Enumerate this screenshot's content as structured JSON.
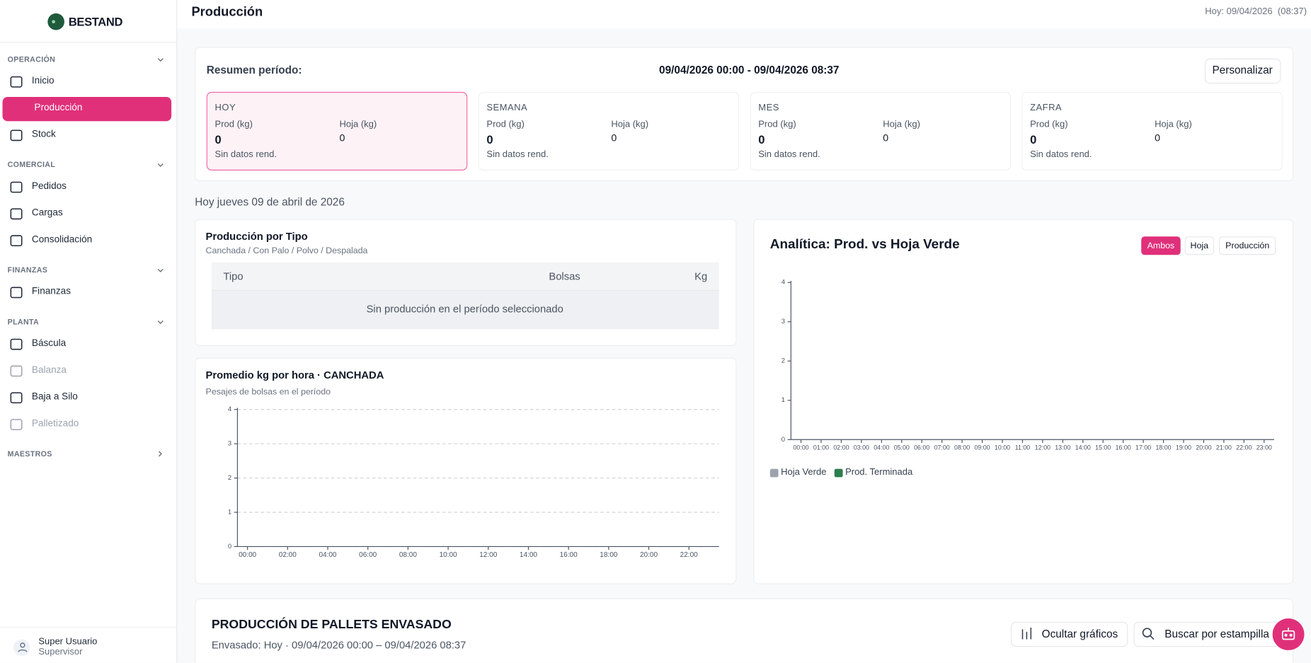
{
  "sidebar": {
    "brand": "BESTAND",
    "sections": [
      {
        "title": "OPERACIÓN",
        "items": [
          {
            "label": "Inicio"
          },
          {
            "label": "Producción",
            "active": true
          },
          {
            "label": "Stock"
          }
        ]
      },
      {
        "title": "COMERCIAL",
        "items": [
          {
            "label": "Pedidos"
          },
          {
            "label": "Cargas"
          },
          {
            "label": "Consolidación"
          }
        ]
      },
      {
        "title": "FINANZAS",
        "items": [
          {
            "label": "Finanzas"
          }
        ]
      },
      {
        "title": "PLANTA",
        "items": [
          {
            "label": "Báscula"
          },
          {
            "label": "Balanza",
            "disabled": true
          },
          {
            "label": "Baja a Silo"
          },
          {
            "label": "Palletizado",
            "disabled": true
          }
        ]
      },
      {
        "title": "MAESTROS",
        "collapsed": true
      }
    ],
    "user": {
      "name": "Super Usuario",
      "role": "Supervisor"
    }
  },
  "header": {
    "title": "Producción",
    "today": "Hoy: 09/04/2026",
    "time": "(08:37)"
  },
  "summary": {
    "label": "Resumen período:",
    "range": "09/04/2026 00:00 - 09/04/2026 08:37",
    "button": "Personalizar",
    "cards": [
      {
        "title": "HOY",
        "prod_label": "Prod (kg)",
        "prod": 0,
        "hoja_label": "Hoja (kg)",
        "hoja": 0,
        "note": "Sin datos rend.",
        "highlight": true
      },
      {
        "title": "SEMANA",
        "prod_label": "Prod (kg)",
        "prod": 0,
        "hoja_label": "Hoja (kg)",
        "hoja": 0,
        "note": "Sin datos rend."
      },
      {
        "title": "MES",
        "prod_label": "Prod (kg)",
        "prod": 0,
        "hoja_label": "Hoja (kg)",
        "hoja": 0,
        "note": "Sin datos rend."
      },
      {
        "title": "ZAFRA",
        "prod_label": "Prod (kg)",
        "prod": 0,
        "hoja_label": "Hoja (kg)",
        "hoja": 0,
        "note": "Sin datos rend."
      }
    ]
  },
  "date_heading": "Hoy jueves 09 de abril de 2026",
  "type_table": {
    "title": "Producción por Tipo",
    "subtitle": "Canchada / Con Palo / Polvo / Despalada",
    "columns": [
      "Tipo",
      "Bolsas",
      "Kg"
    ],
    "empty": "Sin producción en el período seleccionado"
  },
  "chart_data": [
    {
      "type": "line",
      "title": "Promedio kg por hora · CANCHADA",
      "subtitle": "Pesajes de bolsas en el período",
      "categories": [
        "00:00",
        "02:00",
        "04:00",
        "06:00",
        "08:00",
        "10:00",
        "12:00",
        "14:00",
        "16:00",
        "18:00",
        "20:00",
        "22:00"
      ],
      "ylim": [
        0,
        4
      ],
      "yticks": [
        0,
        1,
        2,
        3,
        4
      ],
      "grid": true
    },
    {
      "type": "bar",
      "title": "Analítica: Prod. vs Hoja Verde",
      "toggles": [
        "Ambos",
        "Hoja",
        "Producción"
      ],
      "categories": [
        "00:00",
        "01:00",
        "02:00",
        "03:00",
        "04:00",
        "05:00",
        "06:00",
        "07:00",
        "08:00",
        "09:00",
        "10:00",
        "11:00",
        "12:00",
        "13:00",
        "14:00",
        "15:00",
        "16:00",
        "17:00",
        "18:00",
        "19:00",
        "20:00",
        "21:00",
        "22:00",
        "23:00"
      ],
      "series": [
        {
          "name": "Hoja Verde",
          "color": "#9ca3af",
          "values": [
            0,
            0,
            0,
            0,
            0,
            0,
            0,
            0,
            0,
            0,
            0,
            0,
            0,
            0,
            0,
            0,
            0,
            0,
            0,
            0,
            0,
            0,
            0,
            0
          ]
        },
        {
          "name": "Prod. Terminada",
          "color": "#2e7d4f",
          "values": [
            0,
            0,
            0,
            0,
            0,
            0,
            0,
            0,
            0,
            0,
            0,
            0,
            0,
            0,
            0,
            0,
            0,
            0,
            0,
            0,
            0,
            0,
            0,
            0
          ]
        }
      ],
      "ylim": [
        0,
        4
      ],
      "yticks": [
        0,
        1,
        2,
        3,
        4
      ],
      "grid": false,
      "legend": "bottom-left"
    }
  ],
  "pallets": {
    "title": "PRODUCCIÓN DE PALLETS ENVASADO",
    "subtitle": "Envasado: Hoy · 09/04/2026 00:00 – 09/04/2026 08:37",
    "hide_button": "Ocultar gráficos",
    "search_button": "Buscar por estampilla"
  }
}
